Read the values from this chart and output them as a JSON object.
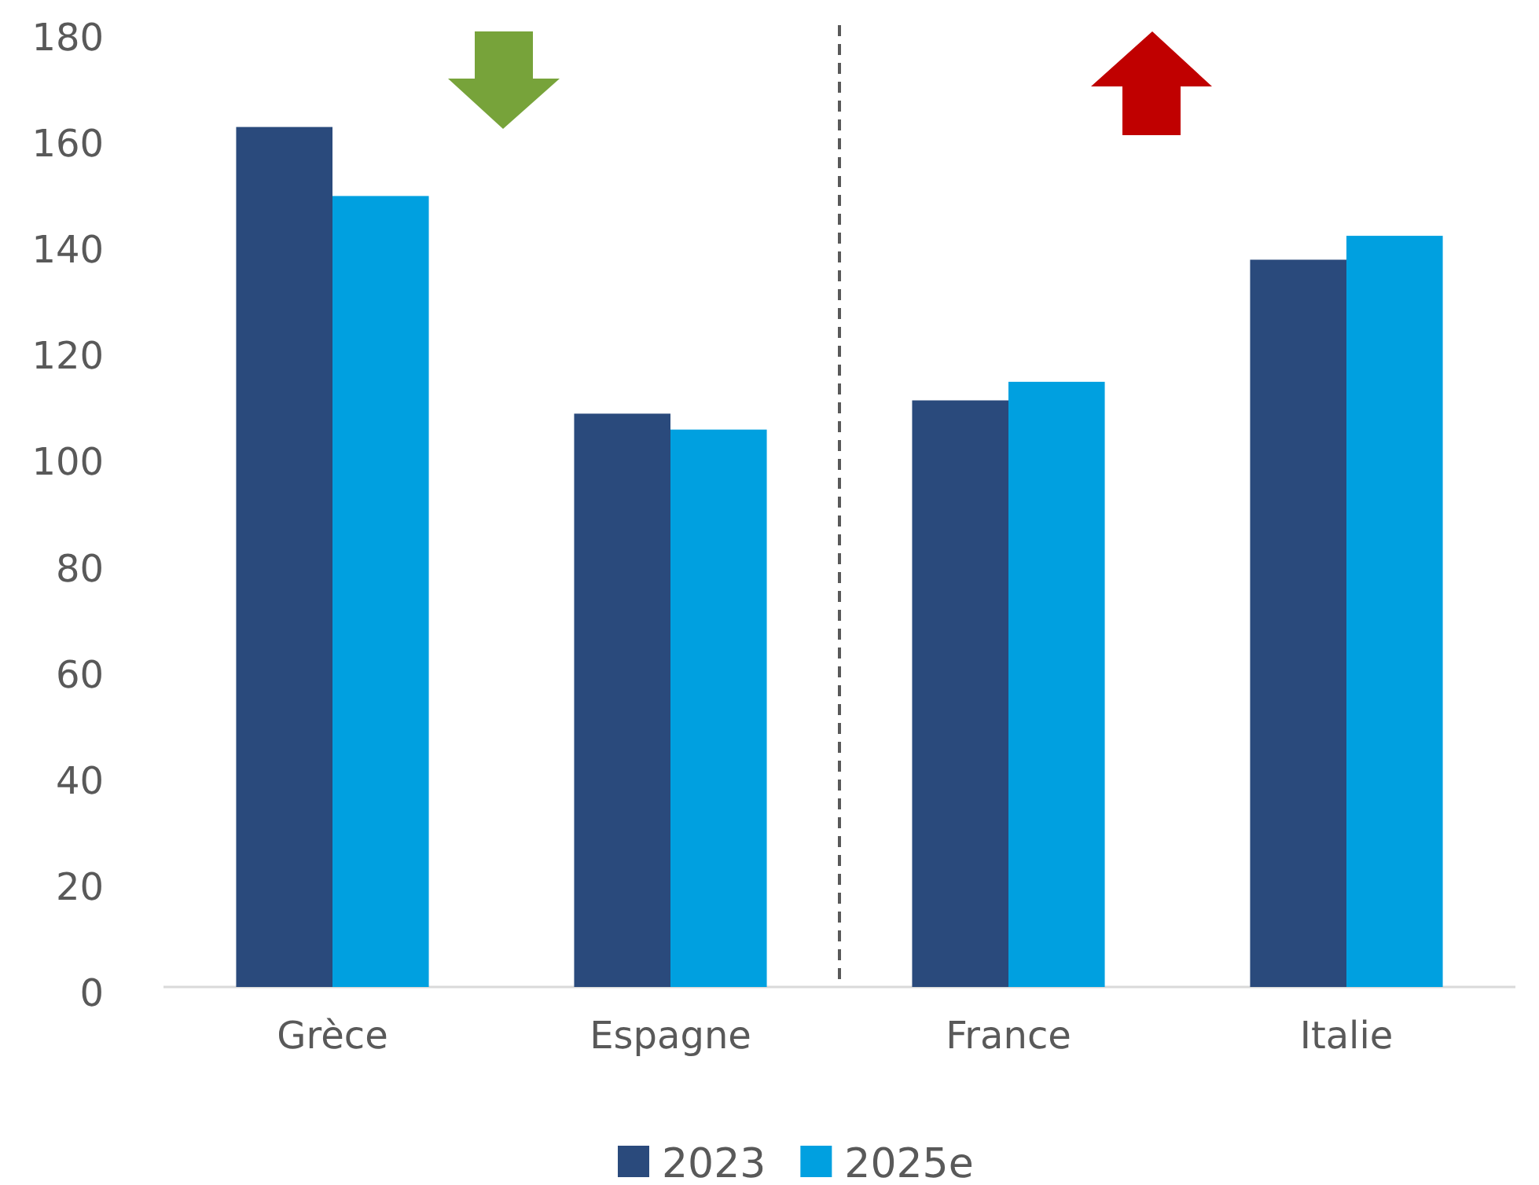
{
  "chart_data": {
    "type": "bar",
    "categories": [
      "Grèce",
      "Espagne",
      "France",
      "Italie"
    ],
    "series": [
      {
        "name": "2023",
        "color": "#2a4a7c",
        "values": [
          162,
          108,
          110.5,
          137
        ]
      },
      {
        "name": "2025e",
        "color": "#00a0e0",
        "values": [
          149,
          105,
          114,
          141.5
        ]
      }
    ],
    "ylim": [
      0,
      180
    ],
    "yticks": [
      0,
      20,
      40,
      60,
      80,
      100,
      120,
      140,
      160,
      180
    ],
    "grid": false,
    "legend": "bottom"
  }
}
